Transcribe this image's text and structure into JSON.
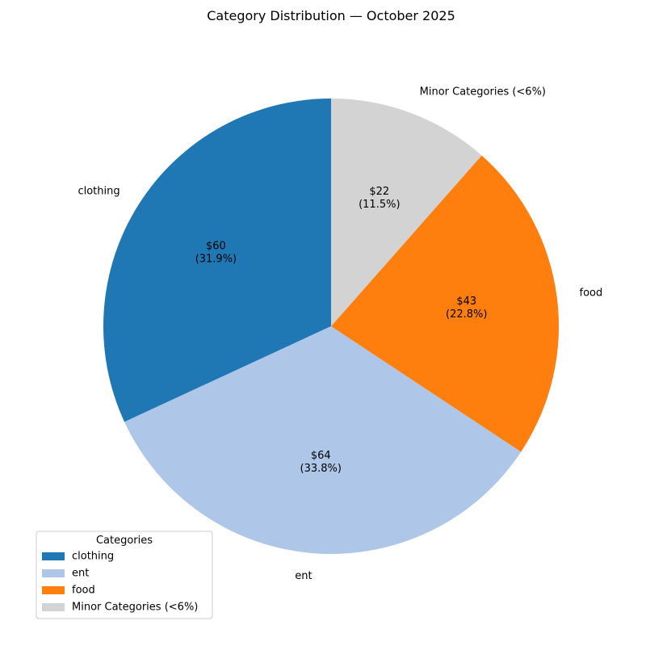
{
  "chart_data": {
    "type": "pie",
    "title": "Category Distribution — October 2025",
    "slices": [
      {
        "label": "clothing",
        "value": 60,
        "value_text": "$60",
        "percent_text": "(31.9%)",
        "color": "#1f77b4"
      },
      {
        "label": "ent",
        "value": 64,
        "value_text": "$64",
        "percent_text": "(33.8%)",
        "color": "#aec7e8"
      },
      {
        "label": "food",
        "value": 43,
        "value_text": "$43",
        "percent_text": "(22.8%)",
        "color": "#ff7f0e"
      },
      {
        "label": "Minor Categories (<6%)",
        "value": 22,
        "value_text": "$22",
        "percent_text": "(11.5%)",
        "color": "#d3d3d3"
      }
    ],
    "percentages": [
      31.9,
      33.8,
      22.8,
      11.5
    ],
    "start_angle_deg": 90,
    "direction": "counterclockwise",
    "legend": {
      "title": "Categories",
      "placement": "lower-left",
      "items": [
        "clothing",
        "ent",
        "food",
        "Minor Categories (<6%)"
      ]
    }
  }
}
